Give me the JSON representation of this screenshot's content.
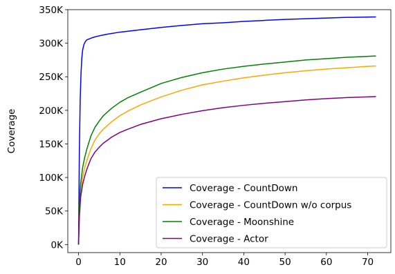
{
  "chart_data": {
    "type": "line",
    "title": "",
    "xlabel": "",
    "ylabel": "Coverage",
    "xlim": [
      -2.6,
      75.6
    ],
    "ylim": [
      -12000,
      350000
    ],
    "xticks": [
      0,
      10,
      20,
      30,
      40,
      50,
      60,
      70
    ],
    "xtick_labels": [
      "0",
      "10",
      "20",
      "30",
      "40",
      "50",
      "60",
      "70"
    ],
    "yticks": [
      0,
      50000,
      100000,
      150000,
      200000,
      250000,
      300000,
      350000
    ],
    "ytick_labels": [
      "0K",
      "50K",
      "100K",
      "150K",
      "200K",
      "250K",
      "300K",
      "350K"
    ],
    "grid": false,
    "legend_position": "lower-right",
    "series": [
      {
        "name": "Coverage - CountDown",
        "color": "#0000ff",
        "x": [
          0,
          0.2,
          0.4,
          0.6,
          0.8,
          1.0,
          1.3,
          1.6,
          2.0,
          3,
          4,
          5,
          7,
          10,
          15,
          20,
          25,
          30,
          35,
          40,
          45,
          50,
          55,
          60,
          65,
          70,
          72
        ],
        "y": [
          0,
          140000,
          215000,
          255000,
          278000,
          290000,
          298000,
          302000,
          305000,
          307500,
          309500,
          311000,
          313500,
          316500,
          320000,
          323500,
          326500,
          329000,
          330500,
          332500,
          334000,
          335500,
          336500,
          337500,
          338500,
          339000,
          339200
        ]
      },
      {
        "name": "Coverage - CountDown w/o corpus",
        "color": "#ffa500",
        "x": [
          0,
          0.2,
          0.5,
          1,
          1.5,
          2,
          3,
          4,
          5,
          6,
          8,
          10,
          12,
          15,
          20,
          25,
          30,
          35,
          40,
          45,
          50,
          55,
          60,
          65,
          70,
          72
        ],
        "y": [
          0,
          45000,
          78000,
          100000,
          115000,
          125000,
          143000,
          156000,
          165000,
          172000,
          183000,
          192000,
          199000,
          208000,
          220000,
          230000,
          238000,
          243500,
          248500,
          252500,
          256000,
          259000,
          261500,
          263500,
          265500,
          266000
        ]
      },
      {
        "name": "Coverage - Moonshine",
        "color": "#008000",
        "x": [
          0,
          0.2,
          0.5,
          1,
          1.5,
          2,
          3,
          4,
          5,
          6,
          8,
          10,
          12,
          15,
          20,
          25,
          30,
          35,
          40,
          45,
          50,
          55,
          60,
          65,
          70,
          72
        ],
        "y": [
          0,
          55000,
          90000,
          115000,
          130000,
          142000,
          162000,
          175000,
          184000,
          192000,
          203000,
          212000,
          219000,
          227000,
          240000,
          249000,
          256000,
          261500,
          265500,
          269000,
          272000,
          275000,
          277000,
          279000,
          280500,
          281000
        ]
      },
      {
        "name": "Coverage - Actor",
        "color": "#800080",
        "x": [
          0,
          0.2,
          0.5,
          1,
          1.5,
          2,
          3,
          4,
          5,
          6,
          8,
          10,
          12,
          15,
          20,
          25,
          30,
          35,
          40,
          45,
          50,
          55,
          60,
          65,
          70,
          72
        ],
        "y": [
          0,
          40000,
          70000,
          90000,
          102000,
          112000,
          128000,
          138000,
          145000,
          151000,
          160000,
          167000,
          172000,
          179000,
          187500,
          194000,
          199500,
          204000,
          207500,
          210500,
          213000,
          215500,
          217500,
          219000,
          220000,
          220500
        ]
      }
    ]
  }
}
